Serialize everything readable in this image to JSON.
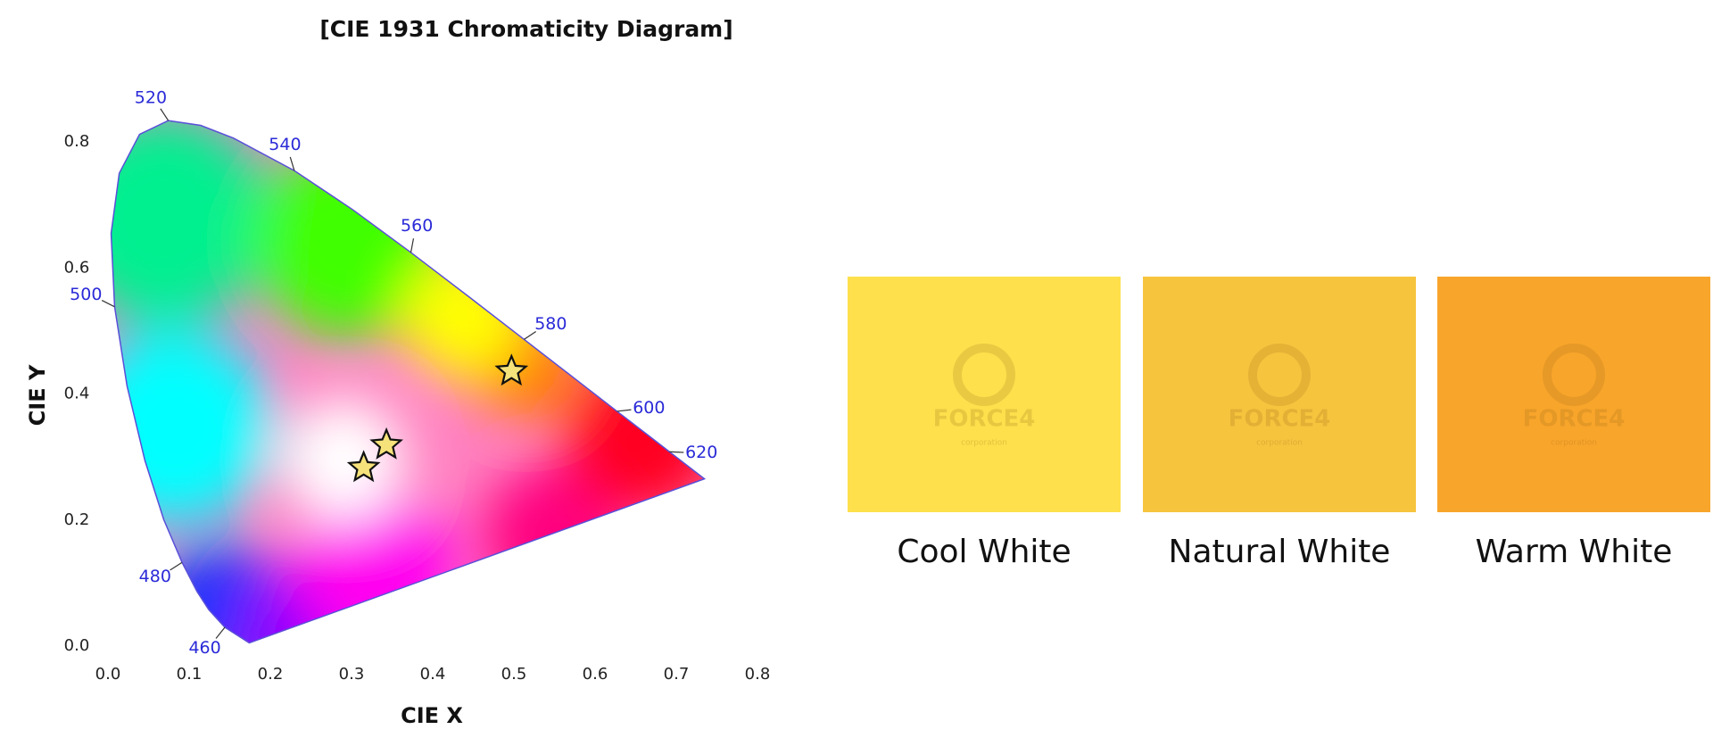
{
  "chart_data": {
    "type": "scatter",
    "title": "[CIE 1931 Chromaticity Diagram]",
    "xlabel": "CIE X",
    "ylabel": "CIE Y",
    "xlim": [
      0,
      0.8
    ],
    "ylim": [
      0,
      0.8
    ],
    "xticks": [
      {
        "value": 0,
        "label": "0.0"
      },
      0.1,
      0.2,
      0.3,
      0.4,
      0.5,
      0.6,
      0.7,
      0.8
    ],
    "yticks": [
      {
        "value": 0,
        "label": "0.0"
      },
      0.2,
      0.4,
      0.6,
      0.8
    ],
    "locus": {
      "x": [
        0.1741,
        0.144,
        0.1241,
        0.1096,
        0.0913,
        0.0687,
        0.0454,
        0.0235,
        0.0082,
        0.0039,
        0.0139,
        0.0389,
        0.0743,
        0.1142,
        0.1547,
        0.2296,
        0.3016,
        0.3731,
        0.4441,
        0.5125,
        0.5752,
        0.627,
        0.6658,
        0.6915,
        0.719,
        0.7347
      ],
      "y": [
        0.005,
        0.0297,
        0.0578,
        0.0868,
        0.1327,
        0.2007,
        0.295,
        0.4127,
        0.5384,
        0.6548,
        0.7502,
        0.812,
        0.8338,
        0.8262,
        0.8059,
        0.7543,
        0.6923,
        0.6245,
        0.5547,
        0.4866,
        0.4242,
        0.3725,
        0.334,
        0.3083,
        0.2809,
        0.2653
      ],
      "color": "#5a4fd8"
    },
    "wavelengths": [
      {
        "label": 460,
        "x": 0.144,
        "y": 0.0297
      },
      {
        "label": 480,
        "x": 0.0913,
        "y": 0.1327
      },
      {
        "label": 500,
        "x": 0.0082,
        "y": 0.5384
      },
      {
        "label": 520,
        "x": 0.0743,
        "y": 0.8338
      },
      {
        "label": 540,
        "x": 0.2296,
        "y": 0.7543
      },
      {
        "label": 560,
        "x": 0.3731,
        "y": 0.6245
      },
      {
        "label": 580,
        "x": 0.5125,
        "y": 0.4866
      },
      {
        "label": 600,
        "x": 0.627,
        "y": 0.3725
      },
      {
        "label": 620,
        "x": 0.6915,
        "y": 0.3083
      }
    ],
    "wavelength_color": "#2a2ad8",
    "x": [
      0.315,
      0.343,
      0.497
    ],
    "values": [
      0.283,
      0.319,
      0.436
    ],
    "color": "#f6e27a"
  },
  "photos": [
    {
      "label": "Cool White",
      "color": "#fde04c",
      "logo": "FORCE4",
      "logo_sub": "corporation"
    },
    {
      "label": "Natural White",
      "color": "#f7c43e",
      "logo": "FORCE4",
      "logo_sub": "corporation"
    },
    {
      "label": "Warm White",
      "color": "#f8a52b",
      "logo": "FORCE4",
      "logo_sub": "corporation"
    }
  ]
}
